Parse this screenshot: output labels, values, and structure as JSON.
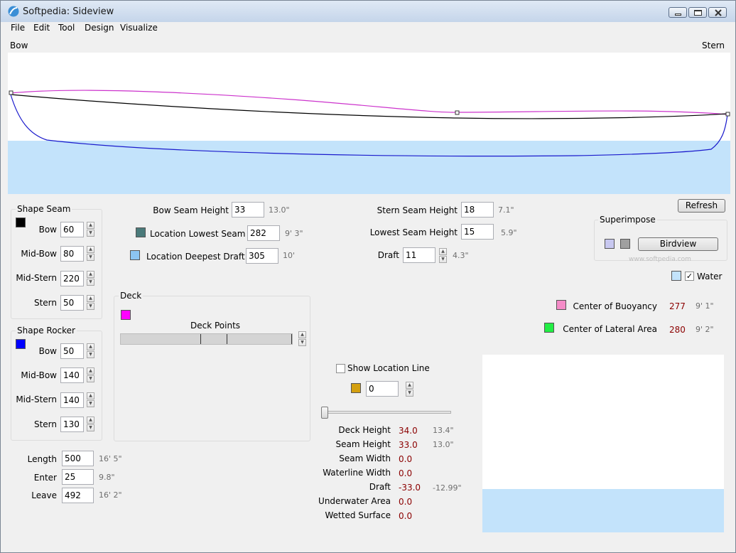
{
  "window": {
    "title": "Softpedia: Sideview"
  },
  "menu": [
    "File",
    "Edit",
    "Tool",
    "Design",
    "Visualize"
  ],
  "view": {
    "bow_label": "Bow",
    "stern_label": "Stern",
    "colors": {
      "water": "#c3e3fb",
      "sheer": "#cc33cc",
      "seam": "#000000",
      "rocker": "#1a1acc"
    }
  },
  "shape_seam": {
    "title": "Shape Seam",
    "swatch": "#000000",
    "rows": [
      {
        "label": "Bow",
        "value": "60"
      },
      {
        "label": "Mid-Bow",
        "value": "80"
      },
      {
        "label": "Mid-Stern",
        "value": "220"
      },
      {
        "label": "Stern",
        "value": "50"
      }
    ]
  },
  "shape_rocker": {
    "title": "Shape Rocker",
    "swatch": "#0000ff",
    "rows": [
      {
        "label": "Bow",
        "value": "50"
      },
      {
        "label": "Mid-Bow",
        "value": "140"
      },
      {
        "label": "Mid-Stern",
        "value": "140"
      },
      {
        "label": "Stern",
        "value": "130"
      }
    ]
  },
  "dimensions": [
    {
      "label": "Length",
      "value": "500",
      "imperial": "16' 5\""
    },
    {
      "label": "Enter",
      "value": "25",
      "imperial": "9.8\""
    },
    {
      "label": "Leave",
      "value": "492",
      "imperial": "16' 2\""
    }
  ],
  "seam_params": {
    "bow_seam_height": {
      "label": "Bow Seam Height",
      "value": "33",
      "imperial": "13.0\""
    },
    "location_lowest_seam": {
      "label": "Location Lowest Seam",
      "value": "282",
      "imperial": "9' 3\"",
      "color": "#4a7a7a"
    },
    "location_deepest_draft": {
      "label": "Location Deepest Draft",
      "value": "305",
      "imperial": "10'",
      "color": "#8cc4f2"
    },
    "stern_seam_height": {
      "label": "Stern Seam Height",
      "value": "18",
      "imperial": "7.1\""
    },
    "lowest_seam_height": {
      "label": "Lowest Seam Height",
      "value": "15",
      "imperial": "5.9\""
    },
    "draft": {
      "label": "Draft",
      "value": "11",
      "imperial": "4.3\""
    }
  },
  "deck": {
    "title": "Deck",
    "swatch": "#ff00ff",
    "points_label": "Deck Points"
  },
  "superimpose": {
    "title": "Superimpose",
    "refresh_label": "Refresh",
    "birdview_label": "Birdview",
    "water_label": "Water",
    "water_checked": true,
    "swatch1": "#c8c8f0",
    "swatch2": "#a0a0a0",
    "water_swatch": "#c3e3fb"
  },
  "centers": [
    {
      "label": "Center of Buoyancy",
      "value": "277",
      "imperial": "9' 1\"",
      "color": "#f58cc8"
    },
    {
      "label": "Center of Lateral Area",
      "value": "280",
      "imperial": "9' 2\"",
      "color": "#22ee44"
    }
  ],
  "location": {
    "show_label": "Show Location Line",
    "checked": false,
    "swatch": "#d4a010",
    "value": "0",
    "slider_fraction": 0
  },
  "section_stats": [
    {
      "label": "Deck Height",
      "value": "34.0",
      "imperial": "13.4\""
    },
    {
      "label": "Seam Height",
      "value": "33.0",
      "imperial": "13.0\""
    },
    {
      "label": "Seam Width",
      "value": "0.0",
      "imperial": ""
    },
    {
      "label": "Waterline Width",
      "value": "0.0",
      "imperial": ""
    },
    {
      "label": "Draft",
      "value": "-33.0",
      "imperial": "-12.99\""
    },
    {
      "label": "Underwater Area",
      "value": "0.0",
      "imperial": ""
    },
    {
      "label": "Wetted Surface",
      "value": "0.0",
      "imperial": ""
    }
  ],
  "watermark": "www.softpedia.com"
}
